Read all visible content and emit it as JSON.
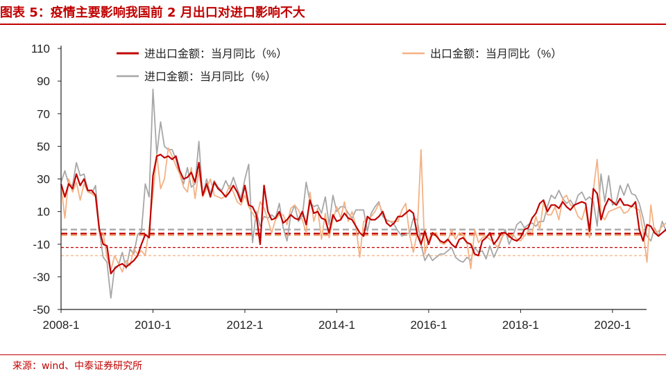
{
  "header": {
    "title": "图表 5：疫情主要影响我国前 2 月出口对进口影响不大"
  },
  "footer": {
    "source": "来源：wind、中泰证券研究所"
  },
  "colors": {
    "accent": "#c00000",
    "total": "#c00000",
    "export": "#f4b183",
    "import": "#a6a6a6"
  },
  "chart_data": {
    "type": "line",
    "title": "图表 5：疫情主要影响我国前 2 月出口对进口影响不大",
    "xlabel": "",
    "ylabel": "",
    "x_ticks": [
      "2008-1",
      "2010-1",
      "2012-1",
      "2014-1",
      "2016-1",
      "2018-1",
      "2020-1"
    ],
    "y_ticks": [
      110,
      90,
      70,
      50,
      30,
      10,
      -10,
      -30,
      -50
    ],
    "ylim": [
      -50,
      110
    ],
    "x_range": [
      "2008-01",
      "2020-02"
    ],
    "grid": false,
    "legend_placement": "top",
    "series": [
      {
        "name": "进出口金额：当月同比（%）",
        "color": "#c00000",
        "values": [
          27,
          19,
          27,
          24,
          33,
          26,
          30,
          23,
          23,
          20,
          -1,
          -10,
          -11,
          -28,
          -25,
          -23,
          -22,
          -24,
          -22,
          -20,
          -17,
          -10,
          -4,
          -6,
          32,
          44,
          45,
          43,
          44,
          42,
          44,
          35,
          30,
          31,
          34,
          28,
          40,
          20,
          27,
          19,
          28,
          24,
          22,
          19,
          22,
          26,
          22,
          16,
          26,
          14,
          13,
          8,
          -10,
          26,
          10,
          5,
          6,
          10,
          3,
          5,
          8,
          6,
          5,
          10,
          2,
          17,
          9,
          10,
          6,
          5,
          -3,
          8,
          4,
          5,
          9,
          6,
          5,
          1,
          -3,
          -5,
          7,
          5,
          5,
          7,
          10,
          3,
          1,
          3,
          7,
          7,
          9,
          11,
          9,
          -4,
          -10,
          -2,
          -10,
          -3,
          -5,
          -8,
          -9,
          -7,
          -10,
          -12,
          -7,
          -6,
          -9,
          -10,
          -16,
          -17,
          -8,
          -6,
          -3,
          -10,
          -7,
          -3,
          -3,
          -5,
          -7,
          -8,
          -6,
          -1,
          0,
          6,
          9,
          15,
          17,
          10,
          14,
          14,
          12,
          16,
          13,
          11,
          14,
          15,
          16,
          15,
          -2,
          24,
          21,
          5,
          13,
          18,
          16,
          14,
          18,
          14,
          14,
          13,
          16,
          -1,
          -8,
          2,
          1,
          -3,
          -5,
          -3,
          -1,
          -2,
          -5,
          -3,
          3,
          11,
          7,
          2,
          -11,
          -4
        ]
      },
      {
        "name": "出口金额：当月同比（%）",
        "color": "#f4b183",
        "values": [
          26,
          6,
          30,
          22,
          28,
          17,
          27,
          22,
          21,
          19,
          -3,
          -3,
          -18,
          -26,
          -17,
          -22,
          -27,
          -20,
          -23,
          -13,
          -16,
          -14,
          -17,
          0,
          21,
          45,
          24,
          30,
          49,
          44,
          38,
          33,
          25,
          22,
          37,
          18,
          35,
          19,
          24,
          30,
          20,
          19,
          18,
          20,
          26,
          22,
          16,
          14,
          20,
          13,
          9,
          5,
          16,
          12,
          5,
          -3,
          5,
          8,
          8,
          2,
          12,
          14,
          11,
          5,
          -3,
          22,
          4,
          12,
          -7,
          9,
          -6,
          5,
          13,
          6,
          16,
          4,
          10,
          1,
          -18,
          4,
          5,
          7,
          10,
          15,
          9,
          4,
          4,
          4,
          4,
          11,
          15,
          -4,
          -15,
          -3,
          48,
          -16,
          -7,
          -3,
          -3,
          -9,
          -10,
          -8,
          -1,
          -7,
          -3,
          -4,
          -9,
          -25,
          -1,
          -9,
          -6,
          -5,
          -7,
          -9,
          -12,
          -6,
          -3,
          -6,
          -4,
          -7,
          -8,
          -5,
          -2,
          -3,
          7,
          -1,
          16,
          8,
          8,
          13,
          5,
          18,
          20,
          14,
          13,
          7,
          5,
          13,
          -6,
          23,
          42,
          8,
          5,
          10,
          11,
          12,
          13,
          9,
          10,
          14,
          12,
          11,
          -2,
          -21,
          14,
          -3,
          -2,
          1,
          3,
          -1,
          4,
          -3,
          -2,
          -1,
          -3,
          -4,
          1,
          8,
          -2,
          -17,
          -5
        ]
      },
      {
        "name": "进口金额：当月同比（%）",
        "color": "#a6a6a6",
        "values": [
          28,
          35,
          27,
          26,
          40,
          32,
          33,
          23,
          21,
          26,
          -2,
          -18,
          -21,
          -43,
          -24,
          -23,
          -15,
          -25,
          -13,
          -16,
          -4,
          -2,
          27,
          19,
          85,
          45,
          65,
          50,
          48,
          48,
          42,
          33,
          27,
          37,
          25,
          27,
          53,
          19,
          30,
          21,
          29,
          25,
          23,
          29,
          24,
          31,
          24,
          18,
          30,
          39,
          -9,
          10,
          1,
          7,
          6,
          8,
          6,
          15,
          0,
          -8,
          8,
          14,
          4,
          7,
          28,
          16,
          13,
          14,
          9,
          19,
          2,
          20,
          10,
          13,
          13,
          9,
          6,
          11,
          11,
          11,
          -2,
          9,
          13,
          16,
          7,
          5,
          4,
          2,
          -2,
          -5,
          -4,
          -3,
          6,
          5,
          -10,
          -20,
          -16,
          -20,
          -18,
          -16,
          -16,
          -14,
          -12,
          -18,
          -20,
          -21,
          -18,
          -20,
          -12,
          -15,
          -14,
          -19,
          -11,
          -18,
          -13,
          -7,
          -1,
          -10,
          -5,
          2,
          4,
          0,
          2,
          3,
          1,
          4,
          4,
          13,
          20,
          18,
          23,
          18,
          15,
          17,
          13,
          20,
          22,
          17,
          19,
          16,
          1,
          33,
          16,
          32,
          14,
          16,
          26,
          20,
          27,
          21,
          20,
          15,
          6,
          -5,
          -8,
          0,
          -5,
          4,
          -2,
          -4,
          -8,
          -6,
          -5,
          -1,
          3,
          -1,
          1,
          18,
          2,
          -4,
          -3
        ]
      }
    ],
    "reference_lines": [
      {
        "series": "进出口金额：当月同比（%）",
        "value": -3.5
      },
      {
        "series": "出口金额：当月同比（%）",
        "value": -4.5
      },
      {
        "series": "进口金额：当月同比（%）",
        "value": -1
      },
      {
        "series": "进出口金额：当月同比（%）",
        "value": -12
      },
      {
        "series": "出口金额：当月同比（%）",
        "value": -17
      }
    ]
  }
}
